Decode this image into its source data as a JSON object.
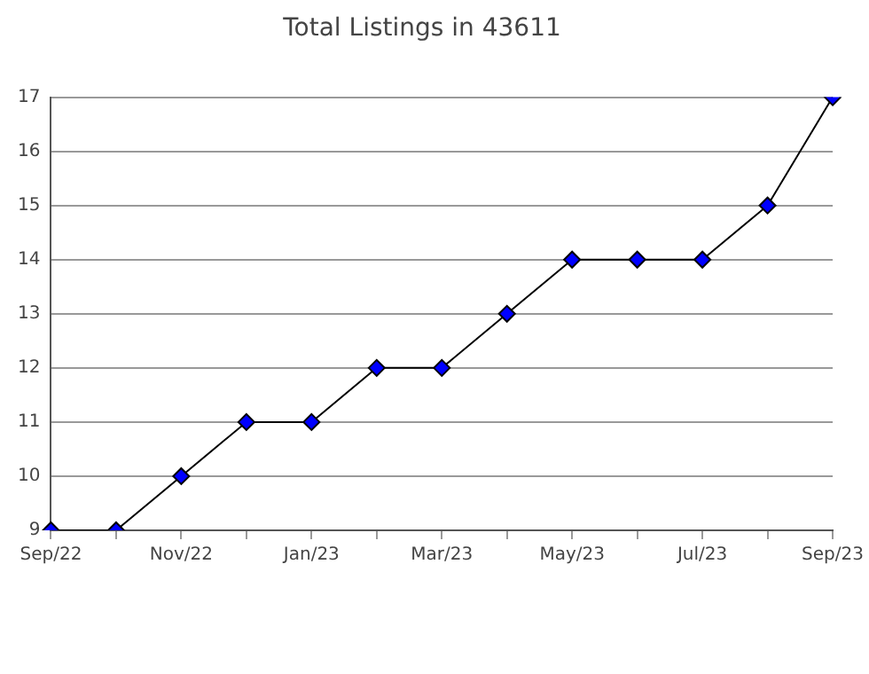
{
  "chart_data": {
    "type": "line",
    "title": "Total Listings in 43611",
    "categories": [
      "Sep/22",
      null,
      "Nov/22",
      null,
      "Jan/23",
      null,
      "Mar/23",
      null,
      "May/23",
      null,
      "Jul/23",
      null,
      "Sep/23"
    ],
    "series": [
      {
        "color": "#0000ff",
        "values": [
          9,
          9,
          10,
          11,
          11,
          12,
          12,
          13,
          14,
          14,
          14,
          15,
          17
        ]
      }
    ],
    "ylim": [
      9,
      17
    ],
    "yticks": [
      9,
      10,
      11,
      12,
      13,
      14,
      15,
      16,
      17
    ],
    "grid": "y",
    "legend": false,
    "marker": "diamond",
    "line_style": "solid"
  }
}
